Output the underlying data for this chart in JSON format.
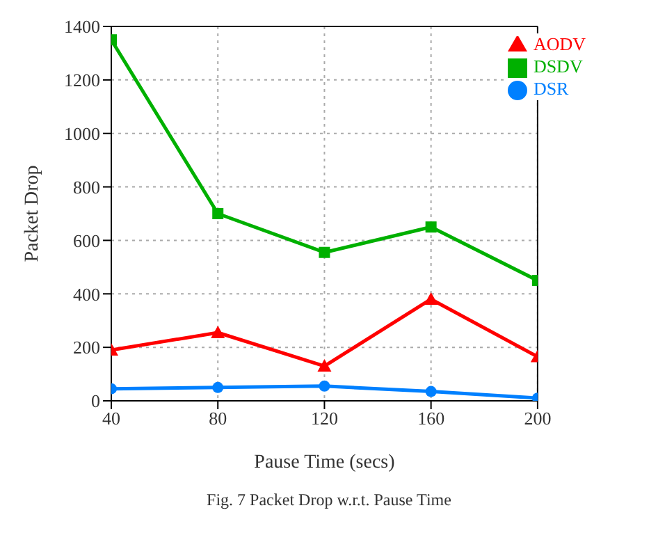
{
  "chart_data": {
    "type": "line",
    "xlabel": "Pause Time (secs)",
    "ylabel": "Packet Drop",
    "annotations": [
      "Fig. 7 Packet Drop w.r.t. Pause Time"
    ],
    "x": [
      40,
      80,
      120,
      160,
      200
    ],
    "series": [
      {
        "name": "AODV",
        "color": "#ff0000",
        "marker": "triangle",
        "values": [
          190,
          255,
          130,
          380,
          165
        ]
      },
      {
        "name": "DSDV",
        "color": "#00b000",
        "marker": "square",
        "values": [
          1350,
          700,
          555,
          650,
          450
        ]
      },
      {
        "name": "DSR",
        "color": "#0080ff",
        "marker": "circle",
        "values": [
          45,
          50,
          55,
          35,
          10
        ]
      }
    ],
    "xlim": [
      40,
      200
    ],
    "xticks": [
      40,
      80,
      120,
      160,
      200
    ],
    "ylim": [
      0,
      1400
    ],
    "yticks": [
      0,
      200,
      400,
      600,
      800,
      1000,
      1200,
      1400
    ],
    "grid": true,
    "legend": "top right",
    "line_style": "solid"
  }
}
